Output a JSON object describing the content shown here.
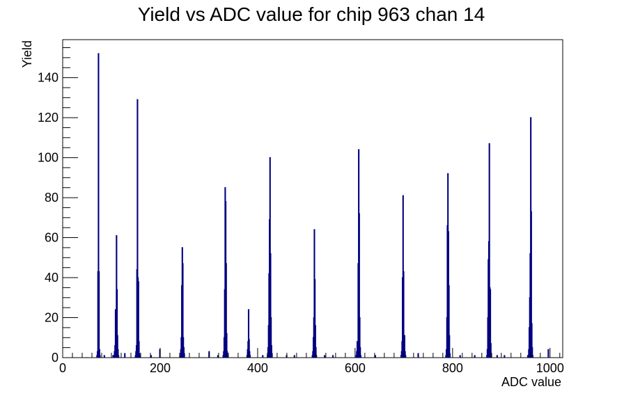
{
  "chart_data": {
    "type": "histogram",
    "title": "Yield vs ADC value for chip 963 chan 14",
    "xlabel": "ADC value",
    "ylabel": "Yield",
    "xlim": [
      0,
      1026
    ],
    "ylim": [
      0,
      159
    ],
    "x_ticks": [
      0,
      200,
      400,
      600,
      800,
      1000
    ],
    "x_tick_labels": [
      "0",
      "200",
      "400",
      "600",
      "800",
      "1000"
    ],
    "y_ticks": [
      0,
      20,
      40,
      60,
      80,
      100,
      120,
      140
    ],
    "y_tick_labels": [
      "0",
      "20",
      "40",
      "60",
      "80",
      "100",
      "120",
      "140"
    ],
    "line_color": "#000080",
    "grid": false,
    "bins": [
      [
        48,
        0,
        1
      ],
      [
        73,
        1,
        1
      ],
      [
        85,
        1,
        1
      ],
      [
        103,
        1,
        1
      ],
      [
        127,
        2,
        1
      ],
      [
        181,
        1,
        1
      ],
      [
        199,
        4,
        1
      ],
      [
        300,
        3,
        1
      ],
      [
        318,
        1,
        1
      ],
      [
        410,
        1,
        1
      ],
      [
        459,
        1,
        1
      ],
      [
        475,
        1,
        1
      ],
      [
        537,
        1,
        1
      ],
      [
        554,
        1,
        1
      ],
      [
        641,
        1,
        1
      ],
      [
        700,
        3,
        1
      ],
      [
        729,
        2,
        1
      ],
      [
        815,
        1,
        1
      ],
      [
        845,
        1,
        1
      ],
      [
        891,
        1,
        1
      ],
      [
        906,
        1,
        1
      ],
      [
        954,
        1,
        1
      ],
      [
        996,
        4,
        1
      ],
      [
        70,
        1,
        1
      ],
      [
        71,
        3,
        1
      ],
      [
        72,
        43,
        1
      ],
      [
        73,
        152,
        1
      ],
      [
        74,
        43,
        1
      ],
      [
        75,
        4,
        1
      ],
      [
        76,
        1,
        1
      ],
      [
        105,
        1,
        1
      ],
      [
        106,
        3,
        1
      ],
      [
        107,
        6,
        1
      ],
      [
        108,
        24,
        1
      ],
      [
        109,
        4,
        1
      ],
      [
        110,
        61,
        1
      ],
      [
        111,
        34,
        1
      ],
      [
        112,
        11,
        1
      ],
      [
        113,
        4,
        1
      ],
      [
        114,
        1,
        1
      ],
      [
        149,
        1,
        1
      ],
      [
        150,
        3,
        1
      ],
      [
        151,
        6,
        1
      ],
      [
        152,
        44,
        1
      ],
      [
        153,
        129,
        1
      ],
      [
        154,
        40,
        1
      ],
      [
        155,
        38,
        1
      ],
      [
        156,
        8,
        1
      ],
      [
        157,
        2,
        1
      ],
      [
        158,
        1,
        1
      ],
      [
        241,
        1,
        1
      ],
      [
        242,
        4,
        1
      ],
      [
        243,
        10,
        1
      ],
      [
        244,
        36,
        1
      ],
      [
        245,
        55,
        1
      ],
      [
        246,
        47,
        1
      ],
      [
        247,
        10,
        1
      ],
      [
        248,
        5,
        1
      ],
      [
        249,
        2,
        1
      ],
      [
        329,
        1,
        1
      ],
      [
        330,
        3,
        1
      ],
      [
        331,
        10,
        1
      ],
      [
        332,
        34,
        1
      ],
      [
        333,
        85,
        1
      ],
      [
        334,
        78,
        1
      ],
      [
        335,
        47,
        1
      ],
      [
        336,
        12,
        1
      ],
      [
        337,
        3,
        1
      ],
      [
        338,
        1,
        1
      ],
      [
        378,
        1,
        1
      ],
      [
        379,
        4,
        1
      ],
      [
        380,
        8,
        1
      ],
      [
        381,
        24,
        1
      ],
      [
        382,
        9,
        1
      ],
      [
        383,
        3,
        1
      ],
      [
        384,
        1,
        1
      ],
      [
        420,
        1,
        1
      ],
      [
        421,
        5,
        1
      ],
      [
        422,
        16,
        1
      ],
      [
        423,
        42,
        1
      ],
      [
        424,
        69,
        1
      ],
      [
        425,
        100,
        1
      ],
      [
        426,
        52,
        1
      ],
      [
        427,
        20,
        1
      ],
      [
        428,
        6,
        1
      ],
      [
        429,
        2,
        1
      ],
      [
        512,
        1,
        1
      ],
      [
        513,
        3,
        1
      ],
      [
        514,
        10,
        1
      ],
      [
        515,
        20,
        1
      ],
      [
        516,
        64,
        1
      ],
      [
        517,
        39,
        1
      ],
      [
        518,
        16,
        1
      ],
      [
        519,
        5,
        1
      ],
      [
        520,
        1,
        1
      ],
      [
        602,
        1,
        1
      ],
      [
        603,
        3,
        1
      ],
      [
        604,
        8,
        1
      ],
      [
        605,
        7,
        1
      ],
      [
        606,
        47,
        1
      ],
      [
        607,
        104,
        1
      ],
      [
        608,
        72,
        1
      ],
      [
        609,
        20,
        1
      ],
      [
        610,
        5,
        1
      ],
      [
        611,
        1,
        1
      ],
      [
        694,
        1,
        1
      ],
      [
        695,
        3,
        1
      ],
      [
        696,
        8,
        1
      ],
      [
        697,
        40,
        1
      ],
      [
        698,
        81,
        1
      ],
      [
        699,
        43,
        1
      ],
      [
        700,
        11,
        1
      ],
      [
        701,
        11,
        1
      ],
      [
        702,
        3,
        1
      ],
      [
        703,
        1,
        1
      ],
      [
        786,
        1,
        1
      ],
      [
        787,
        4,
        1
      ],
      [
        788,
        20,
        1
      ],
      [
        789,
        66,
        1
      ],
      [
        790,
        92,
        1
      ],
      [
        791,
        63,
        1
      ],
      [
        792,
        36,
        1
      ],
      [
        793,
        11,
        1
      ],
      [
        794,
        2,
        1
      ],
      [
        870,
        1,
        1
      ],
      [
        871,
        4,
        1
      ],
      [
        872,
        20,
        1
      ],
      [
        873,
        49,
        1
      ],
      [
        874,
        58,
        1
      ],
      [
        875,
        107,
        1
      ],
      [
        876,
        35,
        1
      ],
      [
        877,
        34,
        1
      ],
      [
        878,
        7,
        1
      ],
      [
        879,
        2,
        1
      ],
      [
        955,
        1,
        1
      ],
      [
        956,
        4,
        1
      ],
      [
        957,
        15,
        1
      ],
      [
        958,
        30,
        1
      ],
      [
        959,
        52,
        1
      ],
      [
        960,
        120,
        1
      ],
      [
        961,
        73,
        1
      ],
      [
        962,
        17,
        1
      ],
      [
        963,
        5,
        1
      ],
      [
        964,
        1,
        1
      ]
    ]
  }
}
